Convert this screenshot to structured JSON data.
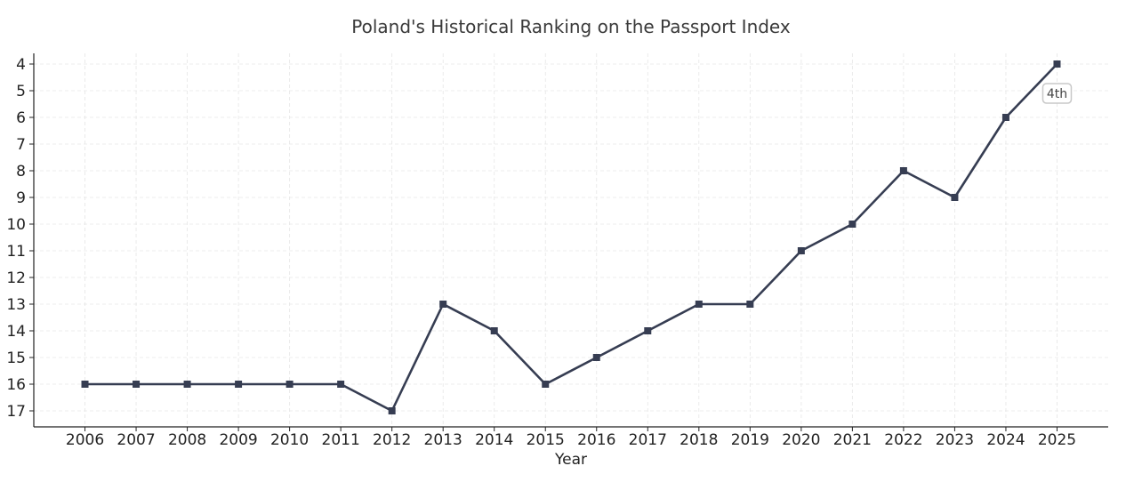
{
  "chart_data": {
    "type": "line",
    "title": "Poland's Historical Ranking on the Passport Index",
    "xlabel": "Year",
    "ylabel": "",
    "x": [
      2006,
      2007,
      2008,
      2009,
      2010,
      2011,
      2012,
      2013,
      2014,
      2015,
      2016,
      2017,
      2018,
      2019,
      2020,
      2021,
      2022,
      2023,
      2024,
      2025
    ],
    "series": [
      {
        "values": [
          16,
          16,
          16,
          16,
          16,
          16,
          17,
          13,
          14,
          16,
          15,
          14,
          13,
          13,
          11,
          10,
          8,
          9,
          6,
          4
        ],
        "color": "#363d52",
        "marker": "square"
      }
    ],
    "yticks": [
      4,
      5,
      6,
      7,
      8,
      9,
      10,
      11,
      12,
      13,
      14,
      15,
      16,
      17
    ],
    "ylim": [
      17.6,
      3.6
    ],
    "y_inverted": true,
    "grid": true,
    "annotations": [
      {
        "x": 2025,
        "y": 4,
        "text": "4th"
      }
    ]
  }
}
